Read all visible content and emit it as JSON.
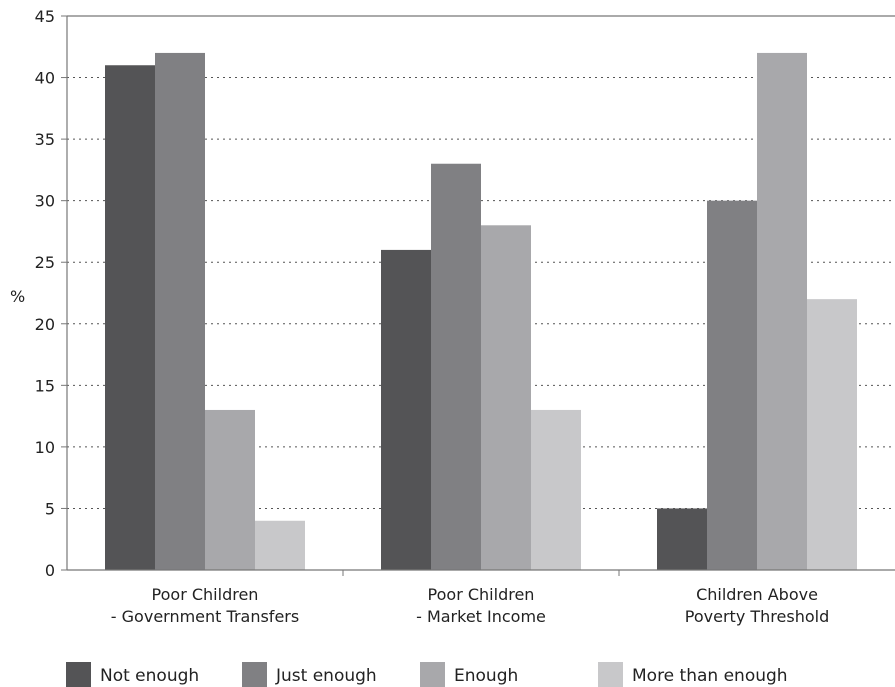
{
  "chart_data": {
    "type": "bar",
    "title": "",
    "xlabel": "",
    "ylabel": "%",
    "ylim": [
      0,
      45
    ],
    "yticks": [
      0,
      5,
      10,
      15,
      20,
      25,
      30,
      35,
      40,
      45
    ],
    "grid": "horizontal dotted",
    "legend_position": "bottom",
    "categories": [
      [
        "Poor Children",
        "- Government Transfers"
      ],
      [
        "Poor Children",
        "- Market Income"
      ],
      [
        "Children Above",
        "Poverty Threshold"
      ]
    ],
    "series": [
      {
        "name": "Not enough",
        "color": "#545456",
        "values": [
          41,
          26,
          5
        ]
      },
      {
        "name": "Just enough",
        "color": "#808083",
        "values": [
          42,
          33,
          30
        ]
      },
      {
        "name": "Enough",
        "color": "#a8a8ab",
        "values": [
          13,
          28,
          42
        ]
      },
      {
        "name": "More than enough",
        "color": "#c8c8ca",
        "values": [
          4,
          13,
          22
        ]
      }
    ]
  }
}
